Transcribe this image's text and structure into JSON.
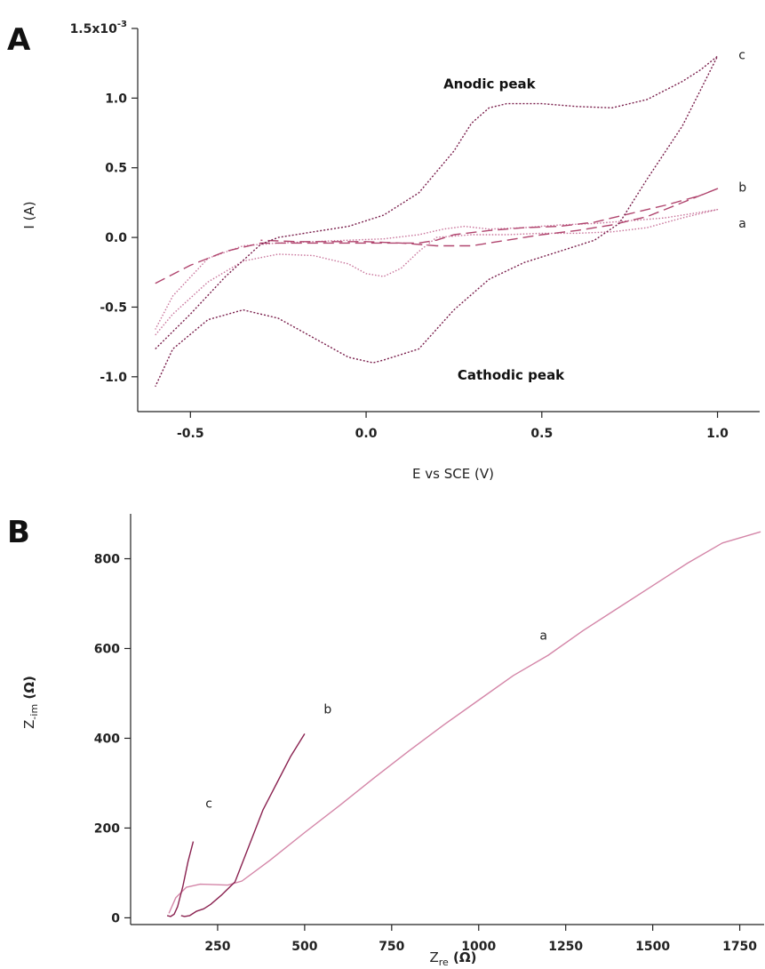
{
  "chart_data": [
    {
      "panel": "A",
      "type": "line",
      "xlabel": "E vs SCE (V)",
      "ylabel": "I (A)",
      "y_multiplier": "x10-3",
      "xlim": [
        -0.65,
        1.12
      ],
      "ylim": [
        -1.25,
        1.5
      ],
      "x_ticks": [
        -0.5,
        0.0,
        0.5,
        1.0
      ],
      "x_tick_labels": [
        "-0.5",
        "0.0",
        "0.5",
        "1.0"
      ],
      "y_ticks": [
        -1.0,
        -0.5,
        0.0,
        0.5,
        1.0,
        1.5
      ],
      "y_tick_labels": [
        "-1.0",
        "-0.5",
        "0.0",
        "0.5",
        "1.0",
        "1.5x10"
      ],
      "y_top_exponent": "-3",
      "annotations": [
        {
          "text": "Anodic peak",
          "x": 0.22,
          "y": 1.07
        },
        {
          "text": "Cathodic peak",
          "x": 0.26,
          "y": -1.02
        }
      ],
      "series": [
        {
          "name": "a",
          "color": "#c8739a",
          "dash": "1.5,2",
          "label_at": [
            1.06,
            0.07
          ],
          "x": [
            -0.6,
            -0.55,
            -0.45,
            -0.35,
            -0.25,
            -0.15,
            -0.05,
            0.0,
            0.05,
            0.1,
            0.15,
            0.2,
            0.3,
            0.4,
            0.5,
            0.6,
            0.7,
            0.8,
            0.9,
            1.0,
            0.95,
            0.85,
            0.75,
            0.65,
            0.55,
            0.45,
            0.35,
            0.28,
            0.22,
            0.15,
            0.05,
            -0.05,
            -0.15,
            -0.25,
            -0.35,
            -0.45,
            -0.55,
            -0.6
          ],
          "y": [
            -0.7,
            -0.55,
            -0.32,
            -0.17,
            -0.12,
            -0.13,
            -0.19,
            -0.26,
            -0.28,
            -0.22,
            -0.1,
            0.0,
            0.02,
            0.02,
            0.03,
            0.03,
            0.04,
            0.07,
            0.14,
            0.2,
            0.18,
            0.14,
            0.12,
            0.1,
            0.09,
            0.07,
            0.06,
            0.08,
            0.06,
            0.02,
            -0.01,
            -0.02,
            -0.03,
            -0.04,
            -0.06,
            -0.15,
            -0.42,
            -0.66
          ]
        },
        {
          "name": "b",
          "color": "#b0456e",
          "dash": "12,6",
          "label_at": [
            1.06,
            0.33
          ],
          "x": [
            -0.6,
            -0.5,
            -0.4,
            -0.3,
            -0.2,
            -0.1,
            0.0,
            0.1,
            0.15,
            0.2,
            0.25,
            0.35,
            0.45,
            0.55,
            0.65,
            0.75,
            0.85,
            0.95,
            1.0,
            0.9,
            0.8,
            0.7,
            0.6,
            0.5,
            0.4,
            0.3,
            0.2,
            0.1,
            0.0,
            -0.1,
            -0.2,
            -0.3
          ],
          "y": [
            -0.33,
            -0.2,
            -0.1,
            -0.04,
            -0.04,
            -0.04,
            -0.04,
            -0.04,
            -0.04,
            -0.02,
            0.02,
            0.05,
            0.07,
            0.08,
            0.11,
            0.17,
            0.23,
            0.3,
            0.35,
            0.25,
            0.15,
            0.09,
            0.05,
            0.02,
            -0.02,
            -0.06,
            -0.06,
            -0.04,
            -0.03,
            -0.03,
            -0.03,
            -0.02
          ]
        },
        {
          "name": "c",
          "color": "#7a1f4c",
          "dash": "2,2",
          "label_at": [
            1.06,
            1.28
          ],
          "x": [
            -0.6,
            -0.5,
            -0.4,
            -0.3,
            -0.25,
            -0.15,
            -0.05,
            0.05,
            0.15,
            0.25,
            0.3,
            0.35,
            0.4,
            0.5,
            0.6,
            0.7,
            0.8,
            0.9,
            0.95,
            1.0,
            0.95,
            0.9,
            0.8,
            0.72,
            0.65,
            0.55,
            0.45,
            0.35,
            0.25,
            0.15,
            0.05,
            0.02,
            -0.05,
            -0.15,
            -0.25,
            -0.35,
            -0.45,
            -0.55,
            -0.6
          ],
          "y": [
            -0.8,
            -0.55,
            -0.28,
            -0.05,
            0.0,
            0.04,
            0.08,
            0.16,
            0.32,
            0.62,
            0.82,
            0.93,
            0.96,
            0.96,
            0.94,
            0.93,
            0.99,
            1.12,
            1.2,
            1.3,
            1.05,
            0.8,
            0.42,
            0.1,
            -0.02,
            -0.1,
            -0.18,
            -0.3,
            -0.52,
            -0.8,
            -0.88,
            -0.9,
            -0.86,
            -0.72,
            -0.58,
            -0.52,
            -0.59,
            -0.8,
            -1.07
          ]
        }
      ]
    },
    {
      "panel": "B",
      "type": "line",
      "xlabel_main": "Z",
      "xlabel_sub": "re",
      "xlabel_unit": " (Ω)",
      "ylabel_main": "Z",
      "ylabel_sub": "-im",
      "ylabel_unit": " (Ω)",
      "xlim": [
        0,
        1820
      ],
      "ylim": [
        -15,
        900
      ],
      "x_ticks": [
        250,
        500,
        750,
        1000,
        1250,
        1500,
        1750
      ],
      "x_tick_labels": [
        "250",
        "500",
        "750",
        "1000",
        "1250",
        "1500",
        "1750"
      ],
      "y_ticks": [
        0,
        200,
        400,
        600,
        800
      ],
      "y_tick_labels": [
        "0",
        "200",
        "400",
        "600",
        "800"
      ],
      "series": [
        {
          "name": "a",
          "color": "#d486a8",
          "label_at": [
            1175,
            620
          ],
          "x": [
            110,
            130,
            160,
            200,
            240,
            280,
            320,
            400,
            500,
            600,
            700,
            800,
            900,
            1000,
            1100,
            1200,
            1300,
            1400,
            1500,
            1600,
            1700,
            1810
          ],
          "y": [
            10,
            45,
            68,
            75,
            74,
            73,
            82,
            128,
            190,
            250,
            312,
            372,
            430,
            485,
            540,
            585,
            640,
            690,
            740,
            790,
            835,
            860
          ]
        },
        {
          "name": "b",
          "color": "#8a2250",
          "label_at": [
            555,
            455
          ],
          "x": [
            145,
            155,
            170,
            190,
            210,
            230,
            260,
            300,
            340,
            380,
            420,
            460,
            500
          ],
          "y": [
            5,
            3,
            5,
            15,
            20,
            30,
            50,
            80,
            160,
            240,
            300,
            360,
            410
          ]
        },
        {
          "name": "c",
          "color": "#8a2250",
          "label_at": [
            215,
            245
          ],
          "x": [
            105,
            115,
            125,
            135,
            150,
            165,
            180
          ],
          "y": [
            5,
            3,
            8,
            25,
            70,
            125,
            170
          ]
        }
      ]
    }
  ],
  "panels": {
    "A": {
      "label": "A"
    },
    "B": {
      "label": "B"
    }
  }
}
